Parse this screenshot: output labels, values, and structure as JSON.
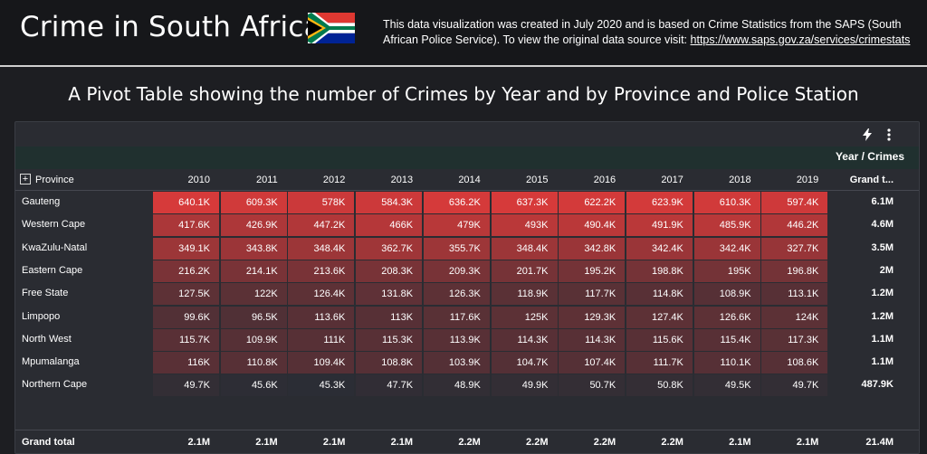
{
  "header": {
    "title": "Crime in South Africa",
    "note_text": "This data visualization was created in July 2020 and is based on Crime Statistics from the SAPS (South African Police Service). To view the original data source visit: ",
    "note_link": "https://www.saps.gov.za/services/crimestats"
  },
  "subtitle": "A Pivot Table showing the number of Crimes by Year and by Province and Police Station",
  "toolbar": {
    "lightning_icon": "lightning-icon",
    "more_icon": "more-vertical-icon"
  },
  "colors": {
    "cell_max": "#d63a3a",
    "cell_min": "#2b2d35",
    "background": "#1d1e22",
    "panel": "#2a2c32"
  },
  "pivot": {
    "column_group_label": "Year / Crimes",
    "row_header": "Province",
    "years": [
      "2010",
      "2011",
      "2012",
      "2013",
      "2014",
      "2015",
      "2016",
      "2017",
      "2018",
      "2019"
    ],
    "grand_total_header": "Grand t...",
    "rows": [
      {
        "province": "Gauteng",
        "display": [
          "640.1K",
          "609.3K",
          "578K",
          "584.3K",
          "636.2K",
          "637.3K",
          "622.2K",
          "623.9K",
          "610.3K",
          "597.4K"
        ],
        "values": [
          640.1,
          609.3,
          578,
          584.3,
          636.2,
          637.3,
          622.2,
          623.9,
          610.3,
          597.4
        ],
        "total": "6.1M"
      },
      {
        "province": "Western Cape",
        "display": [
          "417.6K",
          "426.9K",
          "447.2K",
          "466K",
          "479K",
          "493K",
          "490.4K",
          "491.9K",
          "485.9K",
          "446.2K"
        ],
        "values": [
          417.6,
          426.9,
          447.2,
          466,
          479,
          493,
          490.4,
          491.9,
          485.9,
          446.2
        ],
        "total": "4.6M"
      },
      {
        "province": "KwaZulu-Natal",
        "display": [
          "349.1K",
          "343.8K",
          "348.4K",
          "362.7K",
          "355.7K",
          "348.4K",
          "342.8K",
          "342.4K",
          "342.4K",
          "327.7K"
        ],
        "values": [
          349.1,
          343.8,
          348.4,
          362.7,
          355.7,
          348.4,
          342.8,
          342.4,
          342.4,
          327.7
        ],
        "total": "3.5M"
      },
      {
        "province": "Eastern Cape",
        "display": [
          "216.2K",
          "214.1K",
          "213.6K",
          "208.3K",
          "209.3K",
          "201.7K",
          "195.2K",
          "198.8K",
          "195K",
          "196.8K"
        ],
        "values": [
          216.2,
          214.1,
          213.6,
          208.3,
          209.3,
          201.7,
          195.2,
          198.8,
          195,
          196.8
        ],
        "total": "2M"
      },
      {
        "province": "Free State",
        "display": [
          "127.5K",
          "122K",
          "126.4K",
          "131.8K",
          "126.3K",
          "118.9K",
          "117.7K",
          "114.8K",
          "108.9K",
          "113.1K"
        ],
        "values": [
          127.5,
          122,
          126.4,
          131.8,
          126.3,
          118.9,
          117.7,
          114.8,
          108.9,
          113.1
        ],
        "total": "1.2M"
      },
      {
        "province": "Limpopo",
        "display": [
          "99.6K",
          "96.5K",
          "113.6K",
          "113K",
          "117.6K",
          "125K",
          "129.3K",
          "127.4K",
          "126.6K",
          "124K"
        ],
        "values": [
          99.6,
          96.5,
          113.6,
          113,
          117.6,
          125,
          129.3,
          127.4,
          126.6,
          124
        ],
        "total": "1.2M"
      },
      {
        "province": "North West",
        "display": [
          "115.7K",
          "109.9K",
          "111K",
          "115.3K",
          "113.9K",
          "114.3K",
          "114.3K",
          "115.6K",
          "115.4K",
          "117.3K"
        ],
        "values": [
          115.7,
          109.9,
          111,
          115.3,
          113.9,
          114.3,
          114.3,
          115.6,
          115.4,
          117.3
        ],
        "total": "1.1M"
      },
      {
        "province": "Mpumalanga",
        "display": [
          "116K",
          "110.8K",
          "109.4K",
          "108.8K",
          "103.9K",
          "104.7K",
          "107.4K",
          "111.7K",
          "110.1K",
          "108.6K"
        ],
        "values": [
          116,
          110.8,
          109.4,
          108.8,
          103.9,
          104.7,
          107.4,
          111.7,
          110.1,
          108.6
        ],
        "total": "1.1M"
      },
      {
        "province": "Northern Cape",
        "display": [
          "49.7K",
          "45.6K",
          "45.3K",
          "47.7K",
          "48.9K",
          "49.9K",
          "50.7K",
          "50.8K",
          "49.5K",
          "49.7K"
        ],
        "values": [
          49.7,
          45.6,
          45.3,
          47.7,
          48.9,
          49.9,
          50.7,
          50.8,
          49.5,
          49.7
        ],
        "total": "487.9K"
      }
    ],
    "grand_total": {
      "label": "Grand total",
      "values": [
        "2.1M",
        "2.1M",
        "2.1M",
        "2.1M",
        "2.2M",
        "2.2M",
        "2.2M",
        "2.2M",
        "2.1M",
        "2.1M"
      ],
      "total": "21.4M"
    }
  }
}
